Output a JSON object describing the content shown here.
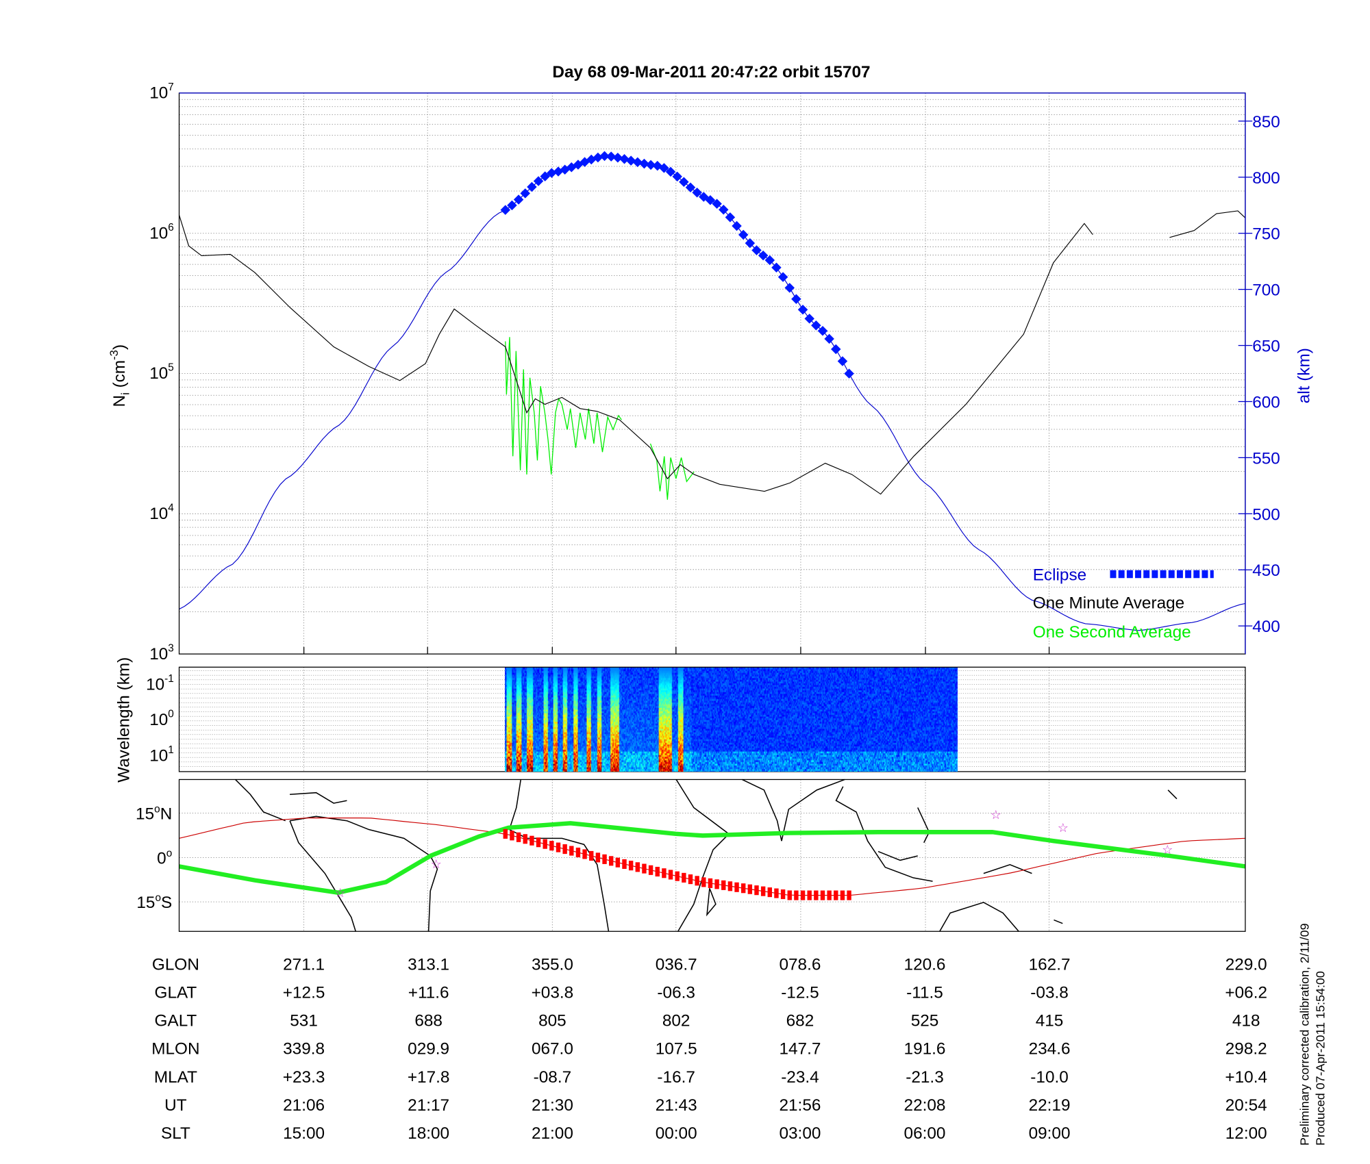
{
  "title": "Day 68  09-Mar-2011 20:47:22   orbit 15707",
  "colors": {
    "alt": "#0000cc",
    "eclipse": "#0018ff",
    "minute": "#000000",
    "second": "#00ee00",
    "orbit": "#cc0000",
    "eclipse_track": "#ff0000",
    "dip_equator": "#22ee22",
    "star": "#cc33cc"
  },
  "chart_data": [
    {
      "type": "line",
      "title": "Day 68  09-Mar-2011 20:47:22   orbit 15707",
      "x_unit": "minutes from panel start",
      "xlim": [
        0,
        100
      ],
      "x_ticks": [
        11.7,
        23.3,
        35.0,
        46.6,
        58.3,
        70.0,
        81.6
      ],
      "ylabel": {
        "base": "N",
        "sub": "i",
        "unit": " (cm",
        "exp": "-3",
        "close": ")"
      },
      "yscale": "log",
      "ylim": [
        1000,
        10000000
      ],
      "y_ticks": [
        {
          "base": "10",
          "exp": "7",
          "value": 7
        },
        {
          "base": "10",
          "exp": "6",
          "value": 6
        },
        {
          "base": "10",
          "exp": "5",
          "value": 5
        },
        {
          "base": "10",
          "exp": "4",
          "value": 4
        },
        {
          "base": "10",
          "exp": "3",
          "value": 3
        }
      ],
      "y2label": "alt (km)",
      "y2lim": [
        375,
        875
      ],
      "y2_ticks": [
        "850",
        "800",
        "750",
        "700",
        "650",
        "600",
        "550",
        "500",
        "450",
        "400"
      ],
      "grid": true,
      "legend": {
        "placement": "bottom-right",
        "entries": [
          "Eclipse",
          "One Minute Average",
          "One Second Average"
        ]
      },
      "series": [
        {
          "name": "One Minute Average",
          "log10_values": [
            [
              0,
              6.13
            ],
            [
              0.9,
              5.91
            ],
            [
              2.1,
              5.84
            ],
            [
              4.8,
              5.85
            ],
            [
              7.1,
              5.72
            ],
            [
              10.4,
              5.47
            ],
            [
              14.5,
              5.19
            ],
            [
              17.8,
              5.05
            ],
            [
              20.7,
              4.95
            ],
            [
              23.1,
              5.07
            ],
            [
              24.4,
              5.28
            ],
            [
              25.8,
              5.46
            ],
            [
              27.7,
              5.35
            ],
            [
              30.6,
              5.19
            ],
            [
              31.8,
              4.91
            ],
            [
              32.6,
              4.72
            ],
            [
              33.4,
              4.82
            ],
            [
              34.3,
              4.78
            ],
            [
              35.9,
              4.83
            ],
            [
              37.6,
              4.75
            ],
            [
              39.2,
              4.73
            ],
            [
              41.3,
              4.67
            ],
            [
              44.2,
              4.47
            ],
            [
              45.8,
              4.25
            ],
            [
              47.0,
              4.35
            ],
            [
              48.3,
              4.28
            ],
            [
              50.7,
              4.21
            ],
            [
              54.9,
              4.16
            ],
            [
              57.3,
              4.22
            ],
            [
              60.6,
              4.36
            ],
            [
              63.1,
              4.28
            ],
            [
              65.8,
              4.14
            ],
            [
              68.9,
              4.41
            ],
            [
              73.8,
              4.78
            ],
            [
              79.2,
              5.28
            ],
            [
              82.0,
              5.79
            ],
            [
              84.9,
              6.07
            ],
            [
              85.7,
              5.99
            ],
            null,
            [
              92.9,
              5.97
            ],
            [
              95.2,
              6.02
            ],
            [
              97.3,
              6.14
            ],
            [
              99.3,
              6.16
            ],
            [
              100,
              6.11
            ]
          ]
        },
        {
          "name": "One Second Average",
          "log10_values": [
            [
              30.6,
              5.23
            ],
            [
              30.7,
              4.85
            ],
            [
              31.0,
              5.26
            ],
            [
              31.3,
              4.41
            ],
            [
              31.6,
              5.16
            ],
            [
              32.0,
              4.31
            ],
            [
              32.3,
              5.03
            ],
            [
              32.6,
              4.28
            ],
            [
              32.9,
              4.97
            ],
            [
              33.3,
              4.72
            ],
            [
              33.6,
              4.38
            ],
            [
              33.9,
              4.91
            ],
            [
              34.3,
              4.72
            ],
            [
              34.6,
              4.53
            ],
            [
              34.9,
              4.28
            ],
            [
              35.3,
              4.72
            ],
            [
              35.6,
              4.82
            ],
            [
              35.9,
              4.78
            ],
            [
              36.4,
              4.6
            ],
            [
              36.7,
              4.75
            ],
            [
              37.2,
              4.47
            ],
            [
              37.6,
              4.72
            ],
            [
              38.1,
              4.53
            ],
            [
              38.4,
              4.75
            ],
            [
              38.9,
              4.5
            ],
            [
              39.2,
              4.72
            ],
            [
              39.7,
              4.44
            ],
            [
              40.2,
              4.69
            ],
            [
              40.7,
              4.6
            ],
            [
              41.2,
              4.7
            ],
            [
              41.5,
              4.67
            ],
            null,
            [
              44.2,
              4.5
            ],
            [
              44.8,
              4.38
            ],
            [
              45.1,
              4.16
            ],
            [
              45.5,
              4.41
            ],
            [
              45.8,
              4.1
            ],
            [
              46.1,
              4.4
            ],
            [
              46.6,
              4.25
            ],
            [
              47.1,
              4.4
            ],
            [
              47.6,
              4.23
            ],
            [
              48.3,
              4.3
            ]
          ]
        },
        {
          "name": "Altitude (km)",
          "axis": "y2",
          "values": [
            [
              0,
              415
            ],
            [
              5,
              455
            ],
            [
              10,
              531
            ],
            [
              15,
              579
            ],
            [
              20,
              649
            ],
            [
              25,
              715
            ],
            [
              30,
              768
            ],
            [
              35,
              804
            ],
            [
              40,
              819
            ],
            [
              45,
              810
            ],
            [
              50,
              779
            ],
            [
              55,
              729
            ],
            [
              60,
              666
            ],
            [
              65,
              596
            ],
            [
              70,
              527
            ],
            [
              75,
              468
            ],
            [
              80,
              423
            ],
            [
              85,
              402
            ],
            [
              90,
              396
            ],
            [
              95,
              403
            ],
            [
              100,
              420
            ]
          ]
        },
        {
          "name": "Eclipse",
          "axis": "y2",
          "x_range": [
            30.6,
            62.9
          ]
        }
      ]
    },
    {
      "type": "heatmap",
      "ylabel": "Wavelength (km)",
      "y_ticks": [
        {
          "base": "10",
          "exp": "-1"
        },
        {
          "base": "10",
          "exp": "0"
        },
        {
          "base": "10",
          "exp": "1"
        }
      ],
      "x_range": [
        30.6,
        73.0
      ],
      "active_intervals": [
        [
          30.7,
          31.2
        ],
        [
          31.6,
          32.1
        ],
        [
          32.6,
          33.2
        ],
        [
          34.2,
          34.6
        ],
        [
          35.1,
          35.5
        ],
        [
          36.0,
          36.4
        ],
        [
          37.0,
          37.4
        ],
        [
          38.2,
          38.6
        ],
        [
          39.2,
          39.6
        ],
        [
          40.4,
          41.3
        ],
        [
          45.0,
          46.2
        ],
        [
          46.8,
          47.3
        ]
      ]
    },
    {
      "type": "line",
      "ylim": [
        -25,
        26.4
      ],
      "y_ticks": [
        {
          "label": "15",
          "deg": "o",
          "hem": "N",
          "value": 15
        },
        {
          "label": "0",
          "deg": "o",
          "hem": "",
          "value": 0
        },
        {
          "label": "15",
          "deg": "o",
          "hem": "S",
          "value": -15
        }
      ],
      "series": [
        {
          "name": "Dip equator",
          "values": [
            [
              0,
              -3.0
            ],
            [
              7.1,
              -7.7
            ],
            [
              14.9,
              -11.9
            ],
            [
              19.4,
              -8.3
            ],
            [
              23.6,
              0.6
            ],
            [
              28.1,
              7.1
            ],
            [
              30.9,
              10.1
            ],
            [
              36.7,
              11.6
            ],
            [
              46.6,
              8.0
            ],
            [
              49.1,
              7.4
            ],
            [
              57.3,
              8.3
            ],
            [
              65.6,
              8.6
            ],
            [
              76.3,
              8.6
            ],
            [
              82.0,
              5.6
            ],
            [
              92.8,
              0.6
            ],
            [
              100,
              -3.0
            ]
          ]
        },
        {
          "name": "Orbit track",
          "values": [
            [
              0,
              6.5
            ],
            [
              6.3,
              11.9
            ],
            [
              12.0,
              13.4
            ],
            [
              17.8,
              13.4
            ],
            [
              24.4,
              11.0
            ],
            [
              30.6,
              8.0
            ],
            [
              40.9,
              -1.5
            ],
            [
              49.1,
              -8.3
            ],
            [
              57.3,
              -12.8
            ],
            [
              62.9,
              -12.8
            ],
            [
              69.7,
              -10.4
            ],
            [
              77.9,
              -5.3
            ],
            [
              86.2,
              1.5
            ],
            [
              94.4,
              5.6
            ],
            [
              100,
              6.5
            ]
          ]
        },
        {
          "name": "Eclipse track",
          "x_range": [
            30.6,
            62.9
          ]
        },
        {
          "name": "Stars",
          "values": [
            [
              15.1,
              -11.9
            ],
            [
              24.1,
              -2.1
            ],
            [
              76.6,
              14.6
            ],
            [
              82.9,
              10.1
            ],
            [
              92.7,
              2.7
            ]
          ]
        }
      ]
    }
  ],
  "table": {
    "rows": [
      {
        "label": "GLON",
        "values": [
          "271.1",
          "313.1",
          "355.0",
          "036.7",
          "078.6",
          "120.6",
          "162.7",
          "229.0"
        ]
      },
      {
        "label": "GLAT",
        "values": [
          "+12.5",
          "+11.6",
          "+03.8",
          "-06.3",
          "-12.5",
          "-11.5",
          "-03.8",
          "+06.2"
        ]
      },
      {
        "label": "GALT",
        "values": [
          "531",
          "688",
          "805",
          "802",
          "682",
          "525",
          "415",
          "418"
        ]
      },
      {
        "label": "MLON",
        "values": [
          "339.8",
          "029.9",
          "067.0",
          "107.5",
          "147.7",
          "191.6",
          "234.6",
          "298.2"
        ]
      },
      {
        "label": "MLAT",
        "values": [
          "+23.3",
          "+17.8",
          "-08.7",
          "-16.7",
          "-23.4",
          "-21.3",
          "-10.0",
          "+10.4"
        ]
      },
      {
        "label": "UT",
        "values": [
          "21:06",
          "21:17",
          "21:30",
          "21:43",
          "21:56",
          "22:08",
          "22:19",
          "20:54"
        ]
      },
      {
        "label": "SLT",
        "values": [
          "15:00",
          "18:00",
          "21:00",
          "00:00",
          "03:00",
          "06:00",
          "09:00",
          "12:00"
        ]
      }
    ]
  },
  "footer": {
    "calibration": "Preliminary corrected calibration, 2/11/09",
    "produced": "Produced 07-Apr-2011 15:54:00"
  }
}
